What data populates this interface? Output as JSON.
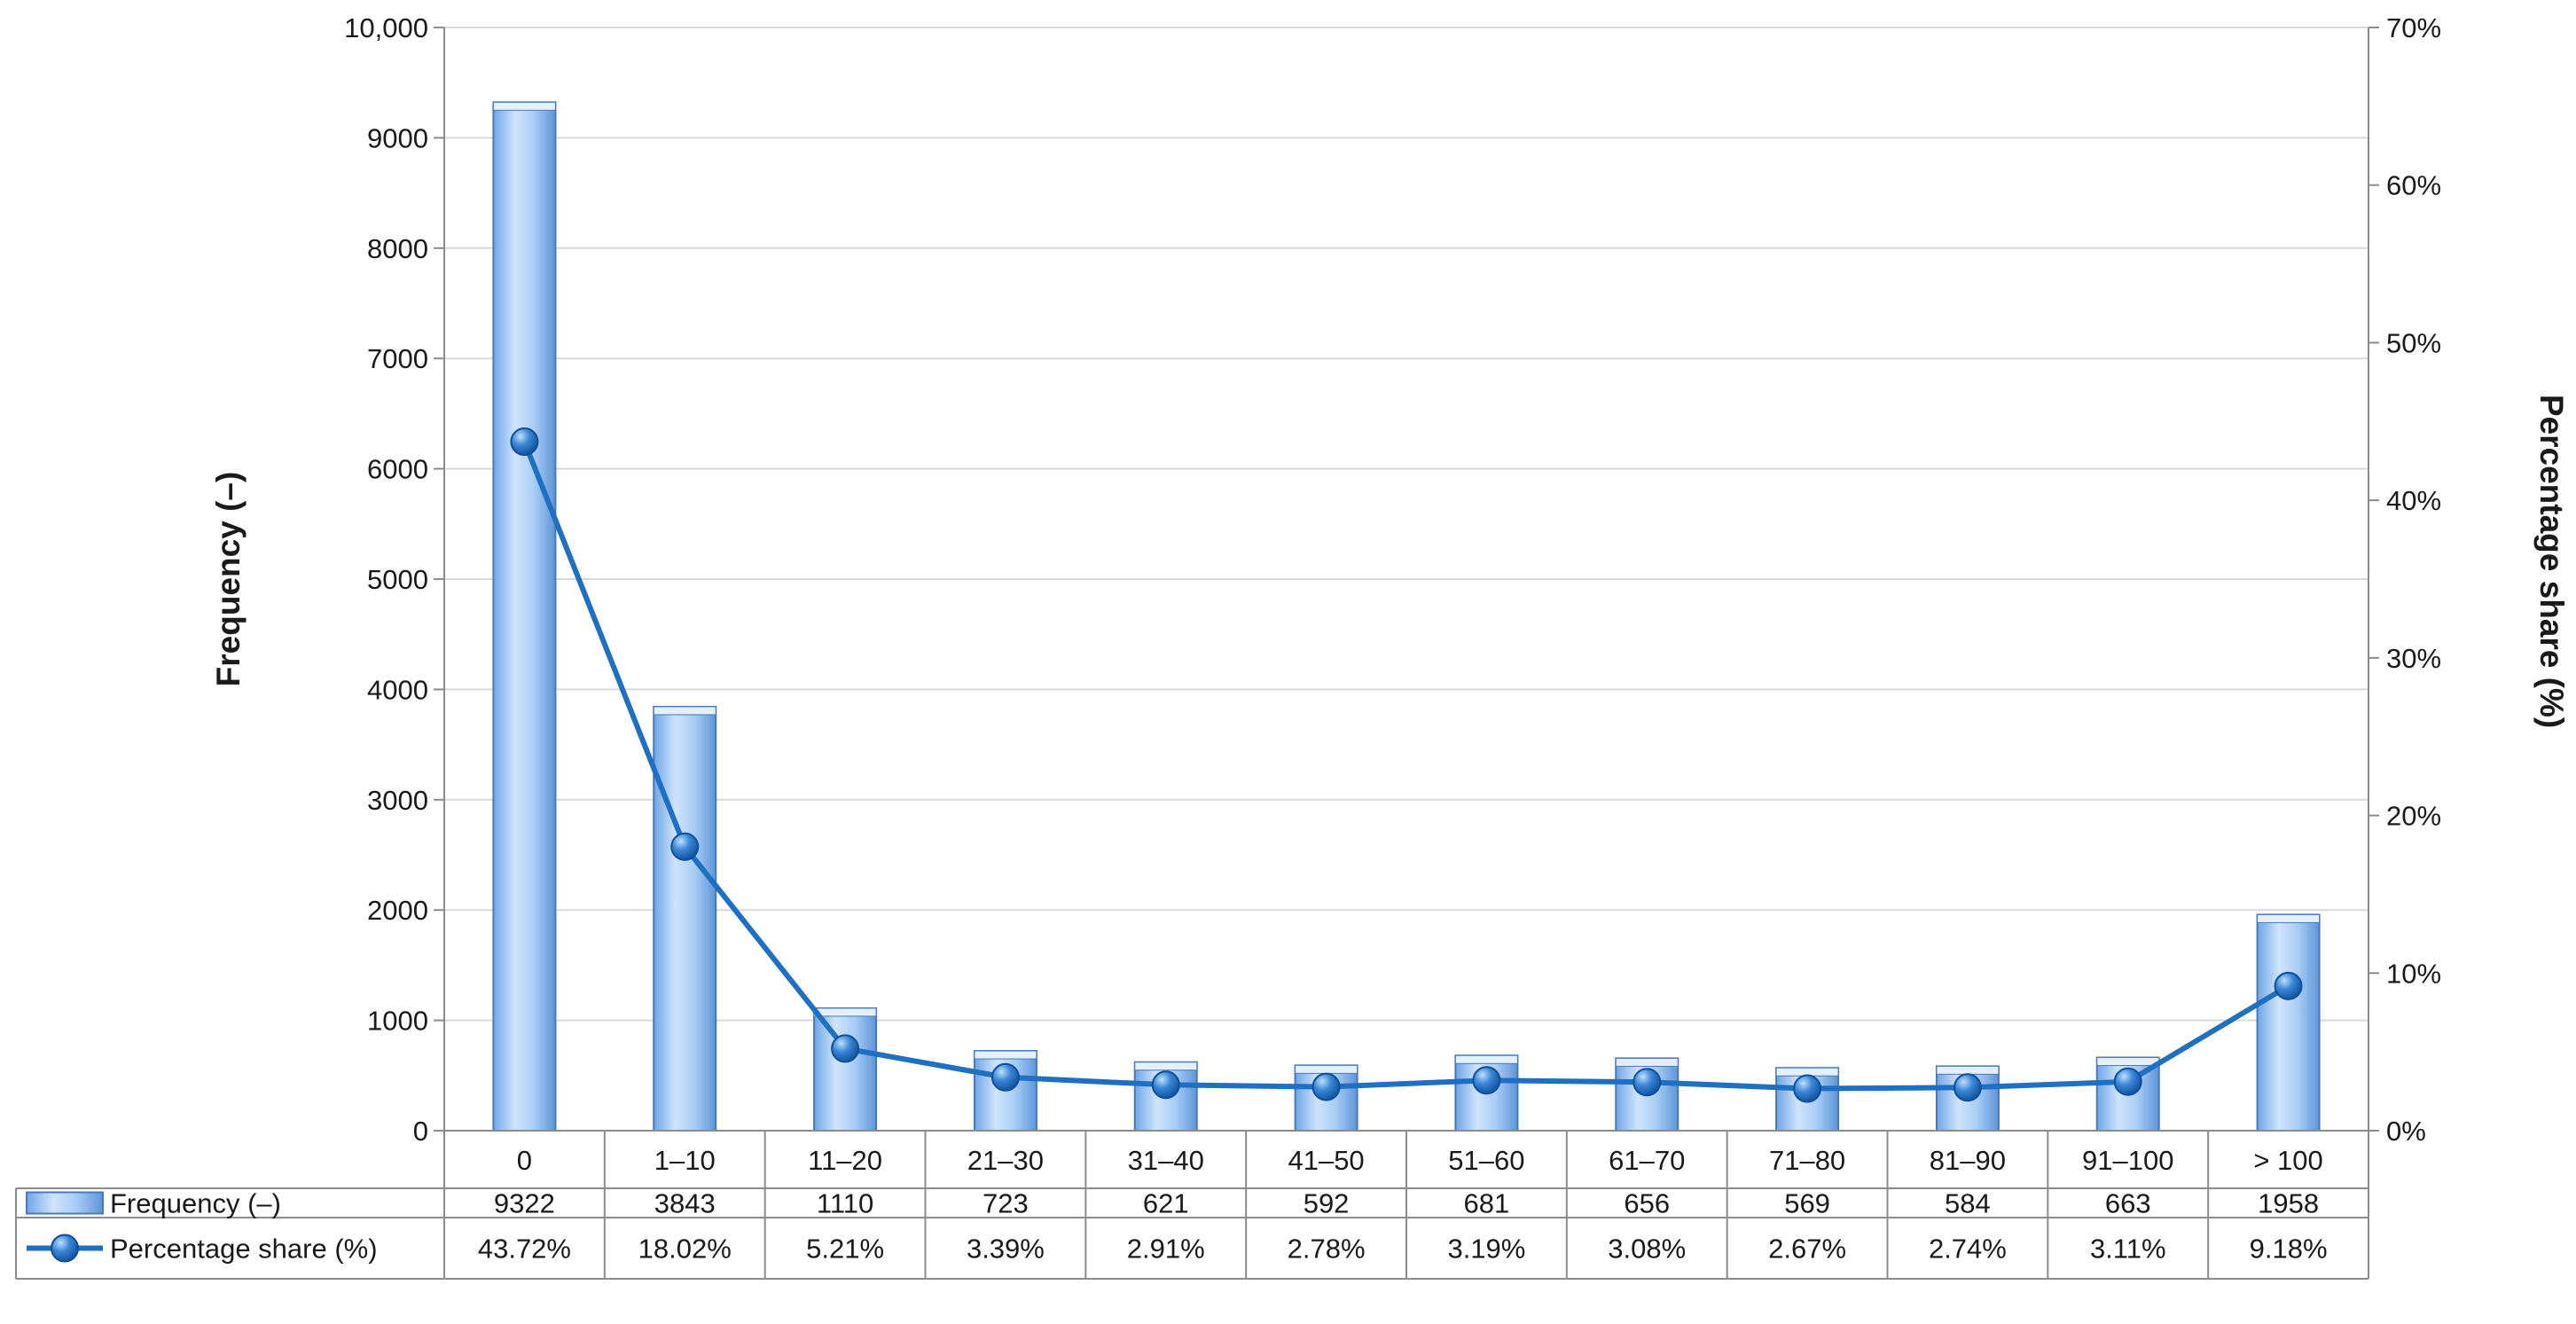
{
  "chart_data": {
    "type": "bar",
    "categories": [
      "0",
      "1–10",
      "11–20",
      "21–30",
      "31–40",
      "41–50",
      "51–60",
      "61–70",
      "71–80",
      "81–90",
      "91–100",
      "> 100"
    ],
    "series": [
      {
        "name": "Frequency (–)",
        "kind": "bar",
        "axis": "left",
        "values": [
          9322,
          3843,
          1110,
          723,
          621,
          592,
          681,
          656,
          569,
          584,
          663,
          1958
        ],
        "labels": [
          "9322",
          "3843",
          "1110",
          "723",
          "621",
          "592",
          "681",
          "656",
          "569",
          "584",
          "663",
          "1958"
        ]
      },
      {
        "name": "Percentage share (%)",
        "kind": "line",
        "axis": "right",
        "values": [
          43.72,
          18.02,
          5.21,
          3.39,
          2.91,
          2.78,
          3.19,
          3.08,
          2.67,
          2.74,
          3.11,
          9.18
        ],
        "labels": [
          "43.72%",
          "18.02%",
          "5.21%",
          "3.39%",
          "2.91%",
          "2.78%",
          "3.19%",
          "3.08%",
          "2.67%",
          "2.74%",
          "3.11%",
          "9.18%"
        ]
      }
    ],
    "ylabel": "Frequency (–)",
    "y2label": "Percentage share (%)",
    "ylim": [
      0,
      10000
    ],
    "y2lim": [
      0,
      70
    ],
    "yticks": [
      "0",
      "1000",
      "2000",
      "3000",
      "4000",
      "5000",
      "6000",
      "7000",
      "8000",
      "9000",
      "10,000"
    ],
    "y2ticks": [
      "0%",
      "10%",
      "20%",
      "30%",
      "40%",
      "50%",
      "60%",
      "70%"
    ],
    "grid": true,
    "data_table": true,
    "colors": {
      "bar_fill": "#9ec8f4",
      "bar_edge": "#4a78b8",
      "line": "#1f6fc2",
      "marker": "#1f6fc2",
      "grid": "#d9d9d9",
      "axis": "#8c8c8c"
    }
  }
}
